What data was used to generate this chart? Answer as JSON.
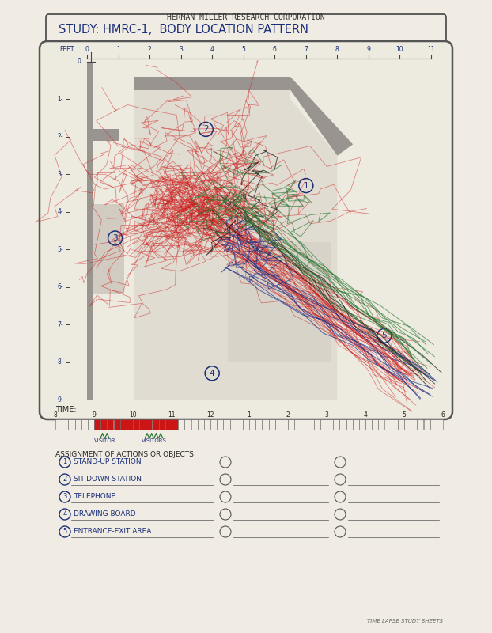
{
  "title_top": "HERMAN MILLER RESEARCH CORPORATION",
  "study_label": "STUDY: HMRC-1,  BODY LOCATION PATTERN",
  "paper_color": "#f0ece3",
  "time_label": "TIME:",
  "time_ticks": [
    "8",
    "9",
    "10",
    "11",
    "12",
    "1",
    "2",
    "3",
    "4",
    "5",
    "6"
  ],
  "assignment_title": "ASSIGNMENT OF ACTIONS OR OBJECTS",
  "assignments": [
    {
      "num": "1",
      "label": "STAND-UP STATION"
    },
    {
      "num": "2",
      "label": "SIT-DOWN STATION"
    },
    {
      "num": "3",
      "label": "TELEPHONE"
    },
    {
      "num": "4",
      "label": "DRAWING BOARD"
    },
    {
      "num": "5",
      "label": "ENTRANCE-EXIT AREA"
    }
  ],
  "footer": "TIME LAPSE STUDY SHEETS",
  "wall_color": "#9a9490",
  "floor_color": "#d8d2c8",
  "red_color": "#cc1515",
  "green_color": "#2a7a35",
  "blue_color": "#1a2e8a",
  "dark_color": "#111111"
}
